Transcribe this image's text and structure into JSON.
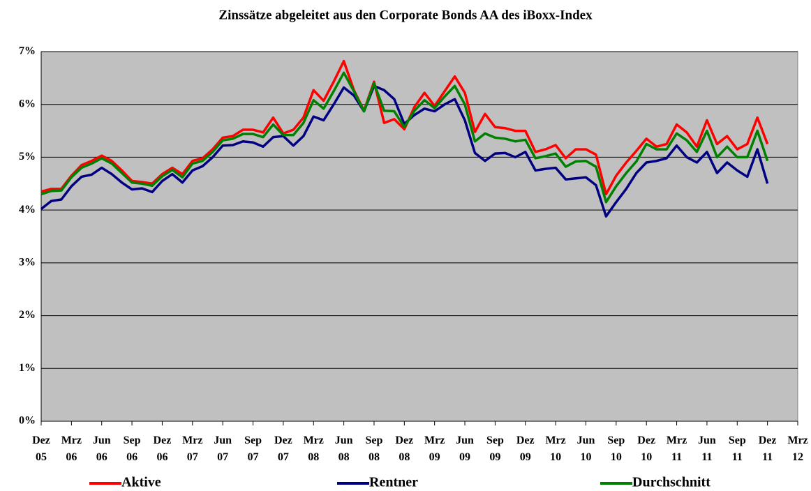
{
  "chart_data": {
    "type": "line",
    "title": "Zinssätze abgeleitet aus den Corporate Bonds AA des iBoxx-Index",
    "categories": [
      "Dez 05",
      null,
      null,
      "Mrz 06",
      null,
      null,
      "Jun 06",
      null,
      null,
      "Sep 06",
      null,
      null,
      "Dez 06",
      null,
      null,
      "Mrz 07",
      null,
      null,
      "Jun 07",
      null,
      null,
      "Sep 07",
      null,
      null,
      "Dez 07",
      null,
      null,
      "Mrz 08",
      null,
      null,
      "Jun 08",
      null,
      null,
      "Sep 08",
      null,
      null,
      "Dez 08",
      null,
      null,
      "Mrz 09",
      null,
      null,
      "Jun 09",
      null,
      null,
      "Sep 09",
      null,
      null,
      "Dez 09",
      null,
      null,
      "Mrz 10",
      null,
      null,
      "Jun 10",
      null,
      null,
      "Sep 10",
      null,
      null,
      "Dez 10",
      null,
      null,
      "Mrz 11",
      null,
      null,
      "Jun 11",
      null,
      null,
      "Sep 11",
      null,
      null,
      "Dez 11",
      null,
      null,
      "Mrz 12"
    ],
    "series": [
      {
        "name": "Aktive",
        "color": "#ff0000",
        "values": [
          4.35,
          4.4,
          4.4,
          4.65,
          4.85,
          4.93,
          5.03,
          4.93,
          4.75,
          4.55,
          4.53,
          4.5,
          4.68,
          4.8,
          4.68,
          4.93,
          4.98,
          5.15,
          5.37,
          5.4,
          5.52,
          5.52,
          5.47,
          5.75,
          5.45,
          5.52,
          5.75,
          6.27,
          6.07,
          6.43,
          6.82,
          6.27,
          5.88,
          6.43,
          5.65,
          5.72,
          5.53,
          5.95,
          6.22,
          5.97,
          6.25,
          6.53,
          6.22,
          5.48,
          5.82,
          5.57,
          5.55,
          5.5,
          5.5,
          5.1,
          5.15,
          5.23,
          4.98,
          5.15,
          5.15,
          5.05,
          4.3,
          4.65,
          4.9,
          5.12,
          5.35,
          5.2,
          5.25,
          5.62,
          5.47,
          5.2,
          5.7,
          5.25,
          5.4,
          5.15,
          5.25,
          5.75,
          5.25,
          null,
          null,
          null
        ]
      },
      {
        "name": "Rentner",
        "color": "#000080",
        "values": [
          4.02,
          4.17,
          4.2,
          4.45,
          4.63,
          4.67,
          4.8,
          4.68,
          4.52,
          4.39,
          4.41,
          4.34,
          4.55,
          4.68,
          4.52,
          4.75,
          4.83,
          5.0,
          5.22,
          5.23,
          5.3,
          5.28,
          5.2,
          5.38,
          5.4,
          5.22,
          5.4,
          5.77,
          5.7,
          6.0,
          6.32,
          6.17,
          5.87,
          6.35,
          6.27,
          6.1,
          5.63,
          5.8,
          5.92,
          5.87,
          6.0,
          6.1,
          5.7,
          5.08,
          4.93,
          5.07,
          5.08,
          5.0,
          5.1,
          4.75,
          4.78,
          4.8,
          4.58,
          4.6,
          4.62,
          4.47,
          3.88,
          4.15,
          4.4,
          4.7,
          4.9,
          4.93,
          4.98,
          5.22,
          5.0,
          4.9,
          5.1,
          4.7,
          4.9,
          4.75,
          4.63,
          5.15,
          4.5,
          null,
          null,
          null
        ]
      },
      {
        "name": "Durchschnitt",
        "color": "#008000",
        "values": [
          4.3,
          4.36,
          4.37,
          4.62,
          4.8,
          4.88,
          4.98,
          4.88,
          4.7,
          4.52,
          4.5,
          4.46,
          4.64,
          4.76,
          4.62,
          4.88,
          4.93,
          5.1,
          5.32,
          5.35,
          5.44,
          5.44,
          5.38,
          5.62,
          5.42,
          5.42,
          5.65,
          6.08,
          5.92,
          6.25,
          6.6,
          6.25,
          5.87,
          6.4,
          5.88,
          5.87,
          5.57,
          5.88,
          6.08,
          5.93,
          6.15,
          6.35,
          6.0,
          5.3,
          5.45,
          5.37,
          5.35,
          5.3,
          5.33,
          4.98,
          5.02,
          5.07,
          4.82,
          4.92,
          4.93,
          4.82,
          4.15,
          4.45,
          4.7,
          4.92,
          5.25,
          5.15,
          5.15,
          5.45,
          5.32,
          5.1,
          5.5,
          5.0,
          5.2,
          5.0,
          5.0,
          5.5,
          4.93,
          null,
          null,
          null
        ]
      }
    ],
    "ylim": [
      0,
      7
    ],
    "yticks": [
      {
        "value": 0,
        "label": "0%"
      },
      {
        "value": 1,
        "label": "1%"
      },
      {
        "value": 2,
        "label": "2%"
      },
      {
        "value": 3,
        "label": "3%"
      },
      {
        "value": 4,
        "label": "4%"
      },
      {
        "value": 5,
        "label": "5%"
      },
      {
        "value": 6,
        "label": "6%"
      },
      {
        "value": 7,
        "label": "7%"
      }
    ],
    "grid": true,
    "legend": "bottom",
    "background": "#c0c0c0"
  }
}
